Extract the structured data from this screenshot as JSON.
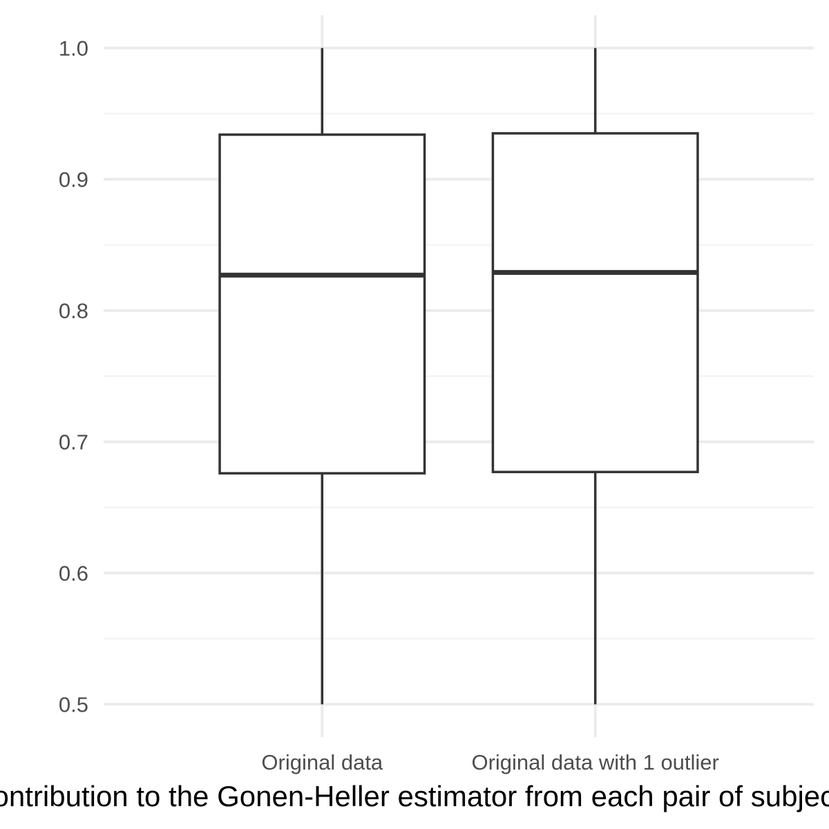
{
  "chart_data": {
    "type": "boxplot",
    "title": "",
    "xlabel": "Contribution to the Gonen-Heller estimator from each pair of subjects",
    "ylabel": "",
    "ylim": [
      0.475,
      1.025
    ],
    "y_ticks": [
      0.5,
      0.6,
      0.7,
      0.8,
      0.9,
      1.0
    ],
    "y_tick_labels": [
      "0.5",
      "0.6",
      "0.7",
      "0.8",
      "0.9",
      "1.0"
    ],
    "y_minor_ticks": [
      0.55,
      0.65,
      0.75,
      0.85,
      0.95
    ],
    "grid": true,
    "categories": [
      "Original data",
      "Original data with 1 outlier"
    ],
    "boxes": [
      {
        "category": "Original data",
        "min": 0.5,
        "q1": 0.676,
        "median": 0.827,
        "q3": 0.934,
        "max": 1.0
      },
      {
        "category": "Original data with 1 outlier",
        "min": 0.5,
        "q1": 0.677,
        "median": 0.829,
        "q3": 0.935,
        "max": 1.0
      }
    ]
  },
  "colors": {
    "box_stroke": "#333333",
    "box_fill": "#ffffff",
    "grid_major": "#ebebeb",
    "grid_minor": "#f2f2f2",
    "tick_text": "#4d4d4d",
    "title_text": "#000000"
  }
}
